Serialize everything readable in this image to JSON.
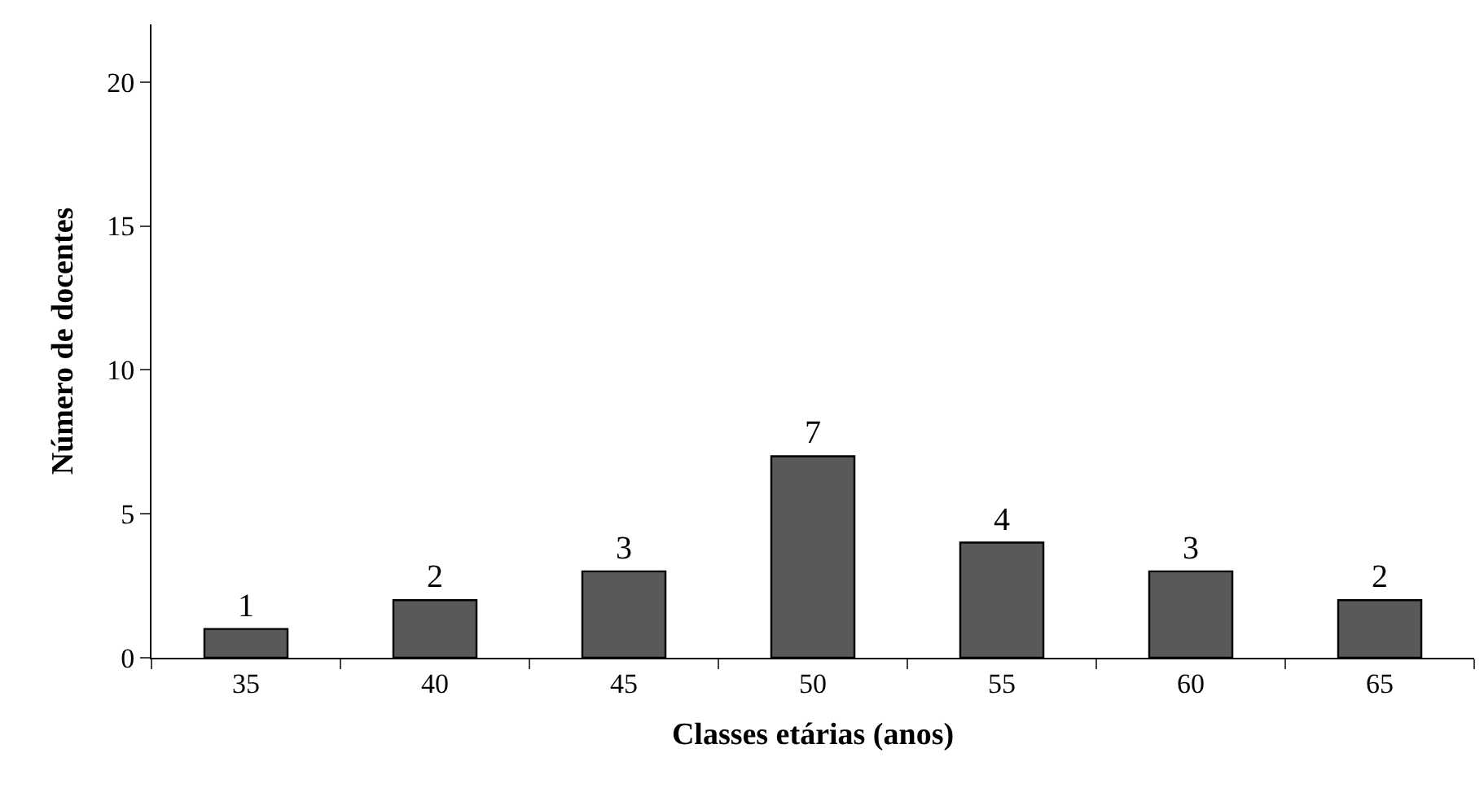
{
  "chart_data": {
    "type": "bar",
    "xlabel": "Classes etárias (anos)",
    "ylabel": "Número de docentes",
    "categories": [
      "35",
      "40",
      "45",
      "50",
      "55",
      "60",
      "65"
    ],
    "values": [
      1,
      2,
      3,
      7,
      4,
      3,
      2
    ],
    "color": "#595959",
    "ylim": [
      0,
      22
    ],
    "yticks": [
      0,
      5,
      10,
      15,
      20
    ],
    "data_labels": true
  }
}
